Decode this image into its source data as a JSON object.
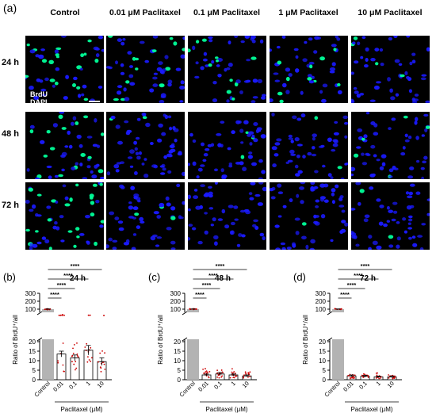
{
  "figure": {
    "panel_a_label": "(a)",
    "columns": [
      "Control",
      "0.01 μM Paclitaxel",
      "0.1 μM Paclitaxel",
      "1 μM Paclitaxel",
      "10 μM Paclitaxel"
    ],
    "rows": [
      "24 h",
      "48 h",
      "72 h"
    ],
    "stain_label_1": "BrdU",
    "stain_label_2": "DAPI",
    "colors": {
      "dapi": "#1a1aff",
      "brdu": "#00ff99",
      "bar": "#b3b3b3",
      "points": "#cc0000"
    }
  },
  "chart_data": [
    {
      "panel": "(b)",
      "title": "24 h",
      "type": "bar",
      "categories": [
        "Control",
        "0.01",
        "0.1",
        "1",
        "10"
      ],
      "values": [
        100,
        13.5,
        11.5,
        15.5,
        9.5
      ],
      "errors": [
        3,
        1.5,
        1.5,
        2.5,
        2
      ],
      "xlabel": "Paclitaxel (μM)",
      "ylabel": "Ratio of BrdU⁺/all",
      "ylim": [
        0,
        300
      ],
      "axis_break": [
        20,
        100
      ],
      "yticks_lower": [
        "0",
        "5",
        "10",
        "15",
        "20"
      ],
      "yticks_upper": [
        "100",
        "200",
        "300"
      ],
      "significance": [
        "****",
        "****",
        "****",
        "****"
      ]
    },
    {
      "panel": "(c)",
      "title": "48 h",
      "type": "bar",
      "categories": [
        "Control",
        "0.01",
        "0.1",
        "1",
        "10"
      ],
      "values": [
        100,
        2.5,
        3,
        2.5,
        2
      ],
      "errors": [
        3,
        0.5,
        0.8,
        0.5,
        0.5
      ],
      "xlabel": "Paclitaxel (μM)",
      "ylabel": "Ratio of BrdU⁺/all",
      "ylim": [
        0,
        300
      ],
      "axis_break": [
        20,
        100
      ],
      "yticks_lower": [
        "0",
        "5",
        "10",
        "15",
        "20"
      ],
      "yticks_upper": [
        "100",
        "200",
        "300"
      ],
      "significance": [
        "****",
        "****",
        "****",
        "****"
      ]
    },
    {
      "panel": "(d)",
      "title": "72 h",
      "type": "bar",
      "categories": [
        "Control",
        "0.01",
        "0.1",
        "1",
        "10"
      ],
      "values": [
        100,
        2,
        1.8,
        1.5,
        1.5
      ],
      "errors": [
        3,
        0.5,
        0.5,
        0.4,
        0.5
      ],
      "xlabel": "Paclitaxel (μM)",
      "ylabel": "Ratio of BrdU⁺/all",
      "ylim": [
        0,
        300
      ],
      "axis_break": [
        20,
        100
      ],
      "yticks_lower": [
        "0",
        "5",
        "10",
        "15",
        "20"
      ],
      "yticks_upper": [
        "100",
        "200",
        "300"
      ],
      "significance": [
        "****",
        "****",
        "****",
        "****"
      ]
    }
  ]
}
